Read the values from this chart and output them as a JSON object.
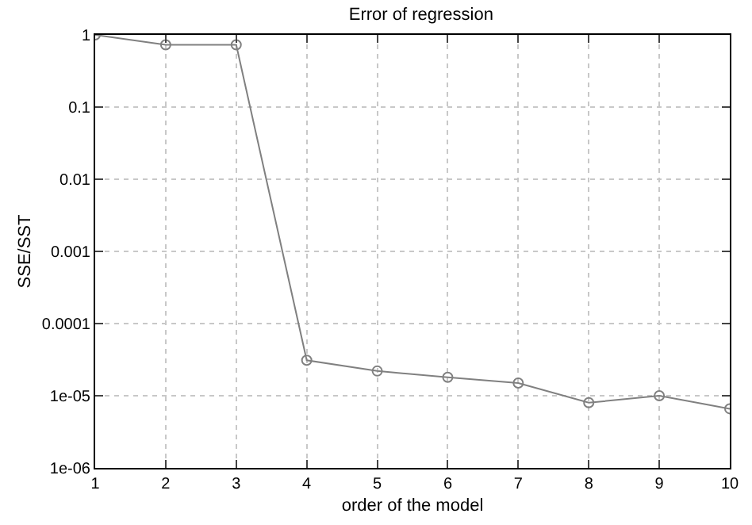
{
  "chart_data": {
    "type": "line",
    "title": "Error of regression",
    "xlabel": "order of the model",
    "ylabel": "SSE/SST",
    "x": [
      1,
      2,
      3,
      4,
      5,
      6,
      7,
      8,
      9,
      10
    ],
    "series": [
      {
        "color": "#808080",
        "values": [
          1,
          0.73,
          0.73,
          3.1e-05,
          2.2e-05,
          1.8e-05,
          1.5e-05,
          8e-06,
          1e-05,
          6.6e-06
        ]
      }
    ],
    "log": "y",
    "xlim": [
      1,
      10
    ],
    "xticks": [
      1,
      2,
      3,
      4,
      5,
      6,
      7,
      8,
      9,
      10
    ],
    "ylim": [
      1e-06,
      1
    ],
    "yticks": [
      {
        "value": 1e-06,
        "label": "1e-06"
      },
      {
        "value": 1e-05,
        "label": "1e-05"
      },
      0.0001,
      0.001,
      0.01,
      0.1,
      1
    ],
    "grid": true,
    "legend": false,
    "marker": "circle",
    "line_style": "solid"
  }
}
